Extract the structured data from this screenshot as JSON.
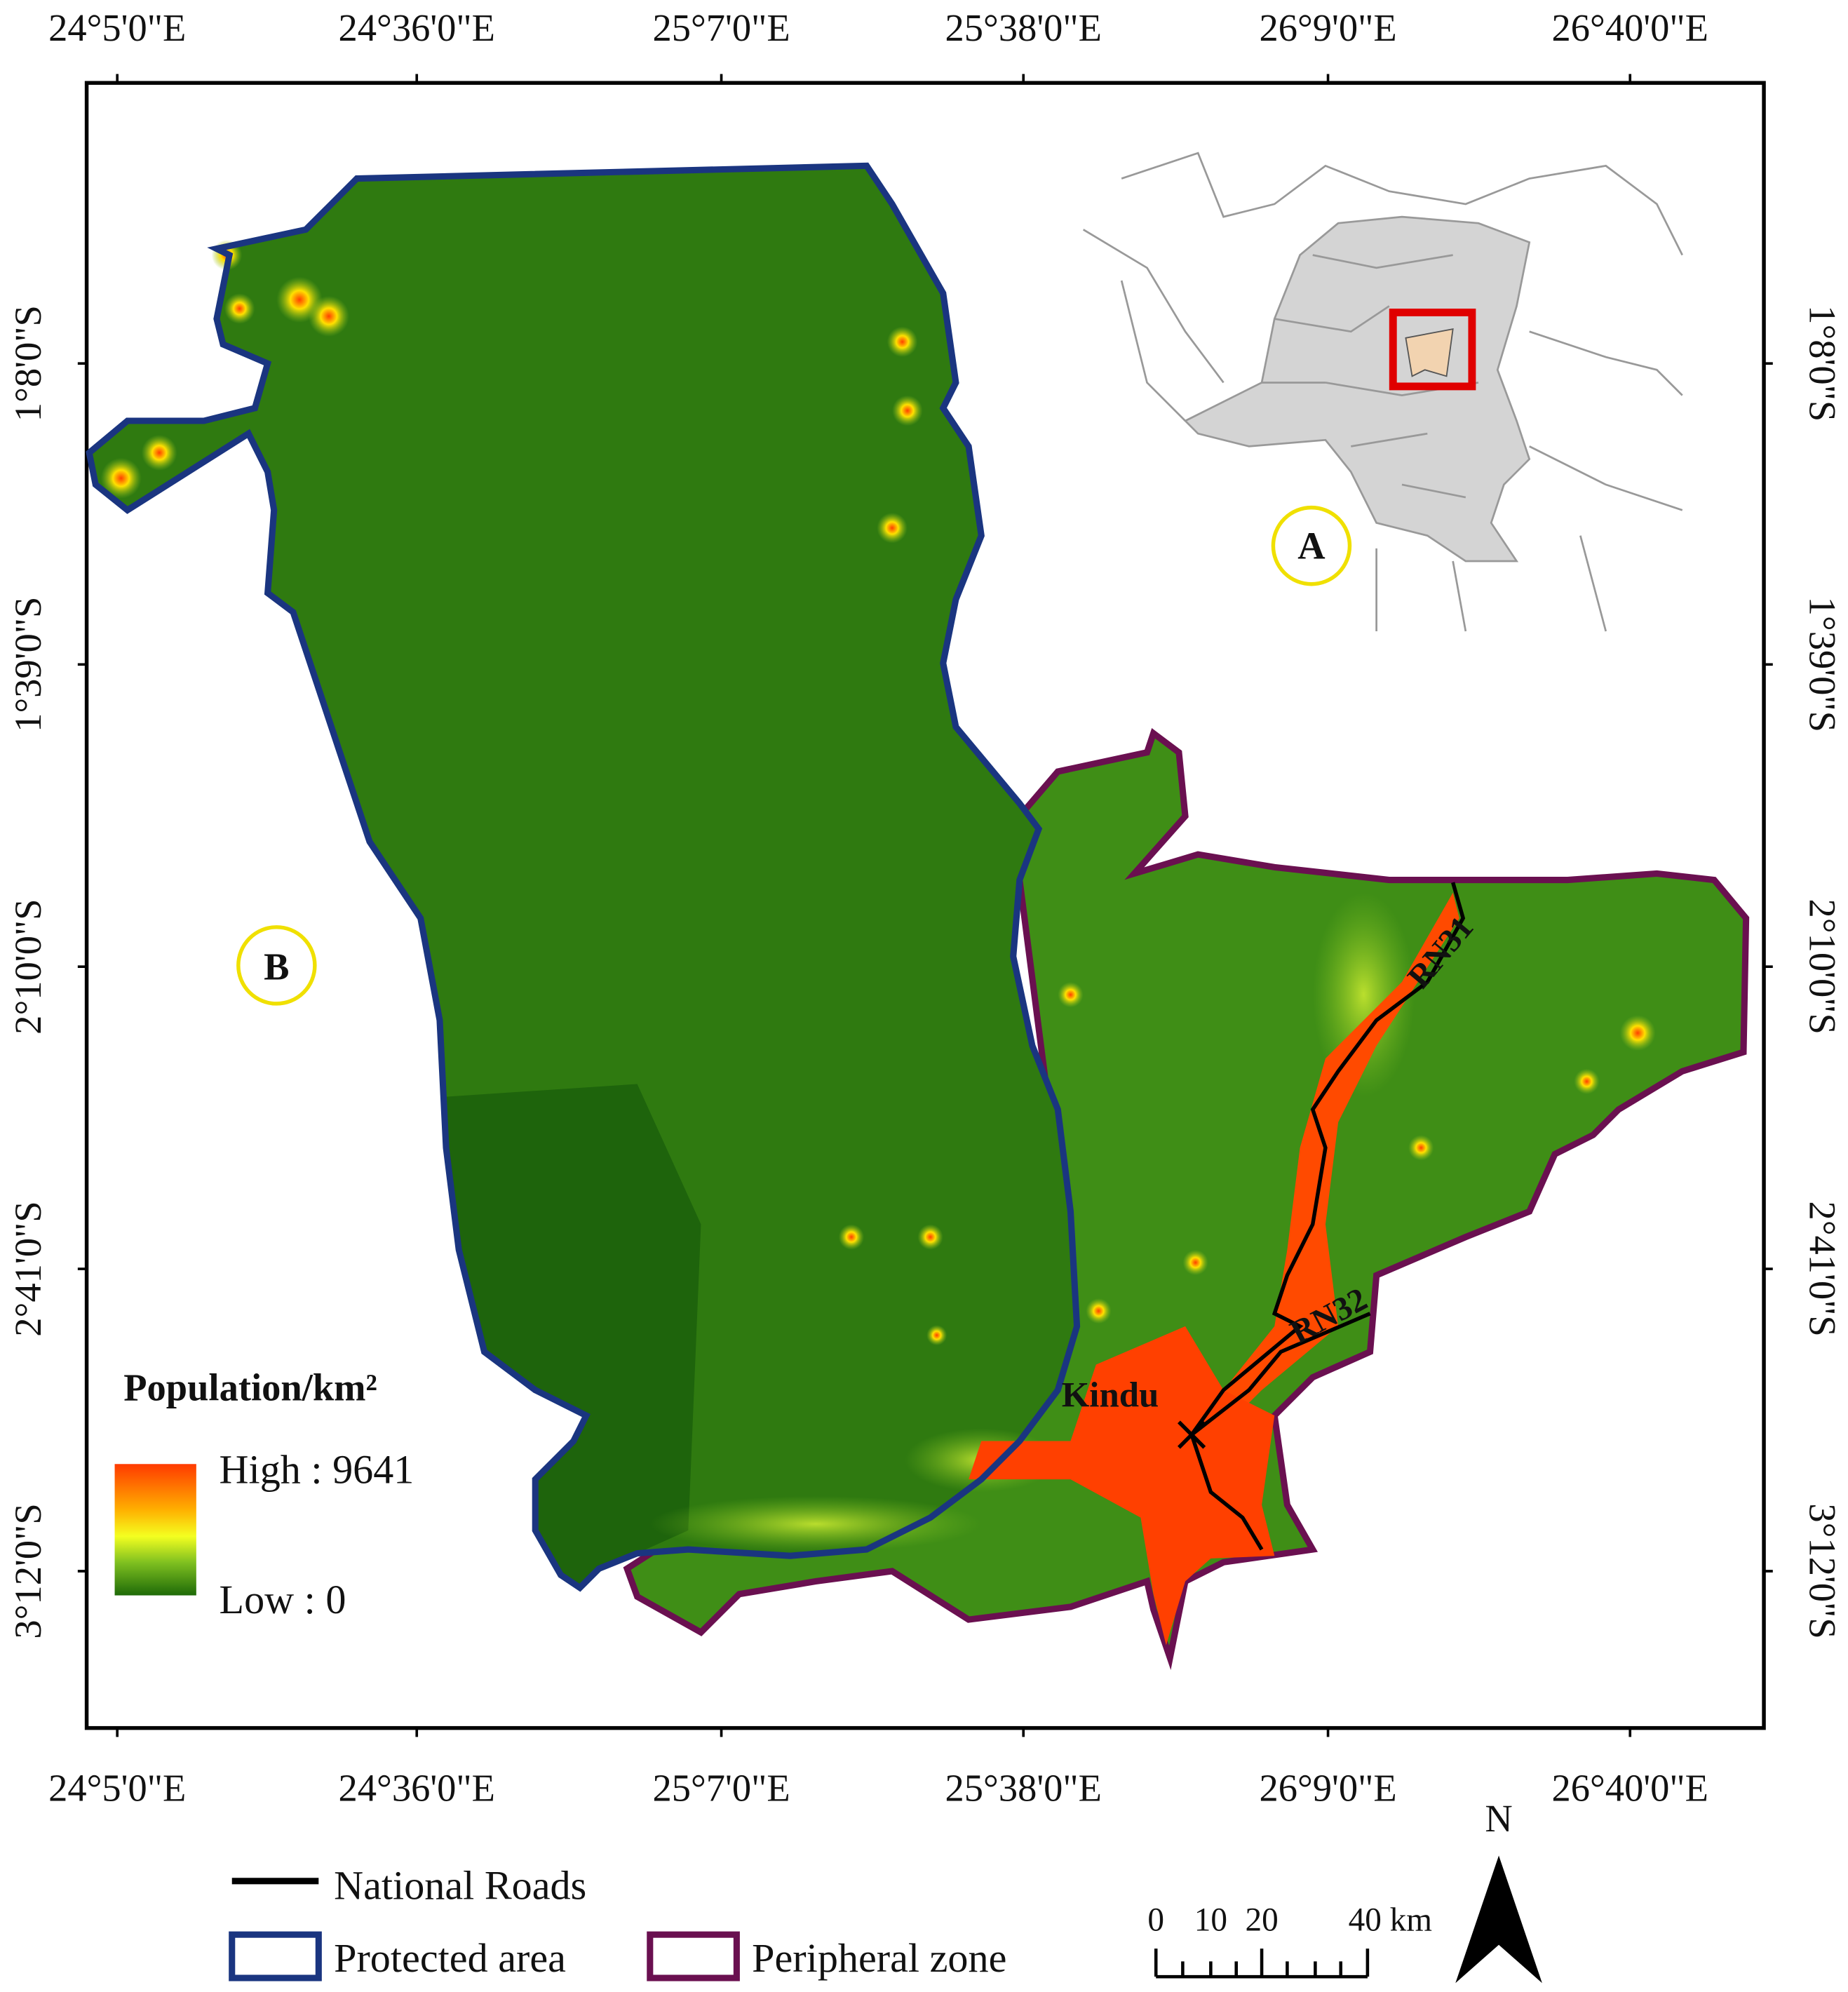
{
  "map": {
    "x_ticks": [
      "24°5'0\"E",
      "24°36'0\"E",
      "25°7'0\"E",
      "25°38'0\"E",
      "26°9'0\"E",
      "26°40'0\"E"
    ],
    "y_ticks": [
      "1°8'0\"S",
      "1°39'0\"S",
      "2°10'0\"S",
      "2°41'0\"S",
      "3°12'0\"S"
    ],
    "inset_label": "A",
    "main_label": "B",
    "place_labels": [
      "Kindu",
      "RN31",
      "RN32"
    ],
    "legend": {
      "title": "Population/km²",
      "high": "High : 9641",
      "low": "Low : 0",
      "items": [
        "National Roads",
        "Protected area",
        "Peripheral zone"
      ]
    },
    "scale_bar": [
      "0",
      "10",
      "20",
      "40 km"
    ],
    "north": "N"
  }
}
